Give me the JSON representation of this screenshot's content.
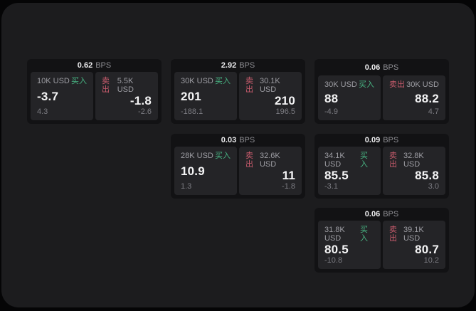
{
  "labels": {
    "bps_unit": "BPS",
    "buy": "买入",
    "sell": "卖出"
  },
  "colors": {
    "background": "#050506",
    "panel": "#1c1c1e",
    "card": "#121214",
    "tile": "#242427",
    "buy_green": "#48b583",
    "sell_red": "#c95c6d",
    "value_white": "#f4f4f5",
    "muted_gray": "#8d8d92"
  },
  "cards": [
    {
      "bps": "0.62",
      "buy": {
        "amount": "10K USD",
        "value": "-3.7",
        "change": "4.3"
      },
      "sell": {
        "amount": "5.5K USD",
        "value": "-1.8",
        "change": "-2.6"
      }
    },
    {
      "bps": "2.92",
      "buy": {
        "amount": "30K USD",
        "value": "201",
        "change": "-188.1"
      },
      "sell": {
        "amount": "30.1K USD",
        "value": "210",
        "change": "196.5"
      }
    },
    {
      "bps": "0.06",
      "buy": {
        "amount": "30K USD",
        "value": "88",
        "change": "-4.9"
      },
      "sell": {
        "amount": "30K USD",
        "value": "88.2",
        "change": "4.7"
      }
    },
    {
      "bps": "0.03",
      "buy": {
        "amount": "28K USD",
        "value": "10.9",
        "change": "1.3"
      },
      "sell": {
        "amount": "32.6K USD",
        "value": "11",
        "change": "-1.8"
      }
    },
    {
      "bps": "0.09",
      "buy": {
        "amount": "34.1K USD",
        "value": "85.5",
        "change": "-3.1"
      },
      "sell": {
        "amount": "32.8K USD",
        "value": "85.8",
        "change": "3.0"
      }
    },
    {
      "bps": "0.06",
      "buy": {
        "amount": "31.8K USD",
        "value": "80.5",
        "change": "-10.8"
      },
      "sell": {
        "amount": "39.1K USD",
        "value": "80.7",
        "change": "10.2"
      }
    }
  ]
}
